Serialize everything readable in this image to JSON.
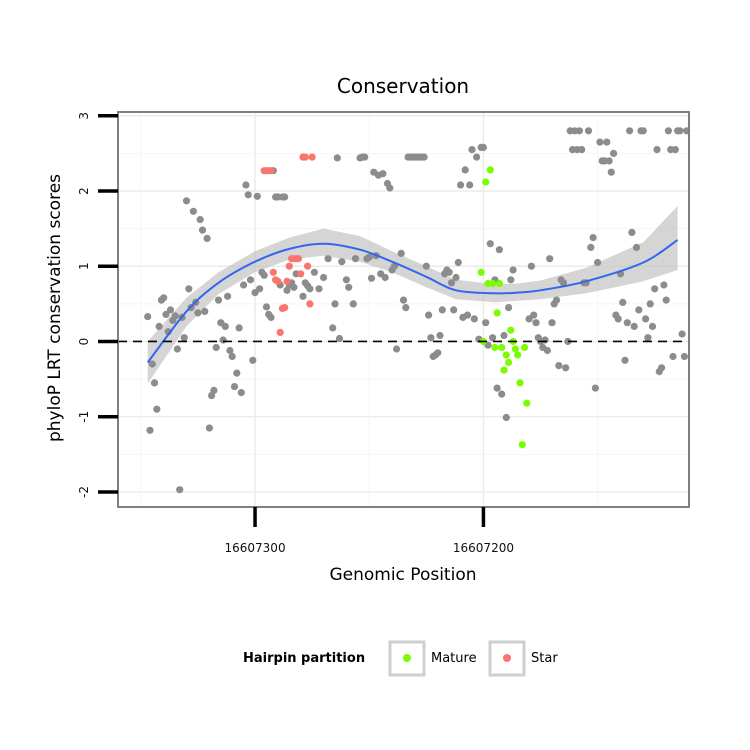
{
  "chart_data": {
    "type": "scatter",
    "title": "Conservation",
    "xlabel": "Genomic Position",
    "ylabel": "phyloP LRT conservation scores",
    "x_reversed": true,
    "xlim": [
      16607360,
      16607110
    ],
    "ylim": [
      -2.2,
      3.05
    ],
    "x_ticks": [
      16607300,
      16607200
    ],
    "x_tick_labels": [
      "16607300",
      "16607200"
    ],
    "y_ticks": [
      -2,
      -1,
      0,
      1,
      2,
      3
    ],
    "y_tick_labels": [
      "-2",
      "-1",
      "0",
      "1",
      "2",
      "3"
    ],
    "grid": true,
    "reference_line": {
      "y": 0,
      "style": "dashed"
    },
    "legend": {
      "title": "Hairpin partition",
      "placement": "bottom",
      "entries": [
        {
          "label": "Mature",
          "color": "#7cfc00"
        },
        {
          "label": "Star",
          "color": "#f8766d"
        }
      ]
    },
    "colors": {
      "other": "#8c8c8c",
      "mature": "#7cfc00",
      "star": "#f8766d",
      "smooth": "#3366ee",
      "band": "#bfbfbf"
    },
    "smooth": {
      "x": [
        16607347,
        16607330,
        16607316,
        16607300,
        16607285,
        16607270,
        16607254,
        16607240,
        16607225,
        16607212,
        16607195,
        16607185,
        16607175,
        16607155,
        16607130,
        16607115
      ],
      "y": [
        -0.28,
        0.4,
        0.78,
        1.06,
        1.23,
        1.3,
        1.22,
        1.06,
        0.86,
        0.68,
        0.64,
        0.65,
        0.68,
        0.8,
        1.05,
        1.35
      ],
      "band_upper": [
        0.0,
        0.58,
        0.92,
        1.2,
        1.38,
        1.5,
        1.4,
        1.2,
        1.0,
        0.82,
        0.76,
        0.77,
        0.81,
        0.98,
        1.32,
        1.8
      ],
      "band_lower": [
        -0.56,
        0.2,
        0.63,
        0.92,
        1.09,
        1.14,
        1.06,
        0.92,
        0.72,
        0.56,
        0.52,
        0.54,
        0.56,
        0.64,
        0.8,
        0.95
      ]
    },
    "series": [
      {
        "group": "Other",
        "points": [
          [
            16607347,
            0.33
          ],
          [
            16607346,
            -1.18
          ],
          [
            16607345,
            -0.3
          ],
          [
            16607344,
            -0.55
          ],
          [
            16607343,
            -0.9
          ],
          [
            16607342,
            0.2
          ],
          [
            16607341,
            0.55
          ],
          [
            16607340,
            0.58
          ],
          [
            16607339,
            0.36
          ],
          [
            16607338,
            0.13
          ],
          [
            16607337,
            0.42
          ],
          [
            16607336,
            0.28
          ],
          [
            16607335,
            0.34
          ],
          [
            16607334,
            -0.1
          ],
          [
            16607333,
            -1.97
          ],
          [
            16607332,
            0.32
          ],
          [
            16607331,
            0.05
          ],
          [
            16607330,
            1.87
          ],
          [
            16607329,
            0.7
          ],
          [
            16607328,
            0.45
          ],
          [
            16607327,
            1.73
          ],
          [
            16607326,
            0.52
          ],
          [
            16607325,
            0.38
          ],
          [
            16607324,
            1.62
          ],
          [
            16607323,
            1.48
          ],
          [
            16607322,
            0.4
          ],
          [
            16607321,
            1.37
          ],
          [
            16607320,
            -1.15
          ],
          [
            16607319,
            -0.72
          ],
          [
            16607318,
            -0.65
          ],
          [
            16607317,
            -0.08
          ],
          [
            16607316,
            0.55
          ],
          [
            16607315,
            0.25
          ],
          [
            16607314,
            0.02
          ],
          [
            16607313,
            0.2
          ],
          [
            16607312,
            0.6
          ],
          [
            16607311,
            -0.12
          ],
          [
            16607310,
            -0.2
          ],
          [
            16607309,
            -0.6
          ],
          [
            16607308,
            -0.42
          ],
          [
            16607307,
            0.18
          ],
          [
            16607306,
            -0.68
          ],
          [
            16607305,
            0.75
          ],
          [
            16607304,
            2.08
          ],
          [
            16607303,
            1.95
          ],
          [
            16607302,
            0.82
          ],
          [
            16607301,
            -0.25
          ],
          [
            16607300,
            0.65
          ],
          [
            16607299,
            1.93
          ],
          [
            16607298,
            0.7
          ],
          [
            16607297,
            0.92
          ],
          [
            16607296,
            0.88
          ],
          [
            16607295,
            0.46
          ],
          [
            16607294,
            0.36
          ],
          [
            16607293,
            0.32
          ],
          [
            16607292,
            2.27
          ],
          [
            16607291,
            1.92
          ],
          [
            16607290,
            1.92
          ],
          [
            16607289,
            0.75
          ],
          [
            16607288,
            1.92
          ],
          [
            16607287,
            1.92
          ],
          [
            16607286,
            0.68
          ],
          [
            16607285,
            0.75
          ],
          [
            16607284,
            0.78
          ],
          [
            16607283,
            0.72
          ],
          [
            16607282,
            0.9
          ],
          [
            16607279,
            0.6
          ],
          [
            16607278,
            0.78
          ],
          [
            16607277,
            0.74
          ],
          [
            16607276,
            0.7
          ],
          [
            16607274,
            0.92
          ],
          [
            16607272,
            0.7
          ],
          [
            16607270,
            0.85
          ],
          [
            16607268,
            1.1
          ],
          [
            16607266,
            0.18
          ],
          [
            16607265,
            0.5
          ],
          [
            16607264,
            2.44
          ],
          [
            16607263,
            0.04
          ],
          [
            16607262,
            1.06
          ],
          [
            16607260,
            0.82
          ],
          [
            16607259,
            0.72
          ],
          [
            16607257,
            0.5
          ],
          [
            16607256,
            1.1
          ],
          [
            16607254,
            2.44
          ],
          [
            16607253,
            2.45
          ],
          [
            16607252,
            2.45
          ],
          [
            16607251,
            1.1
          ],
          [
            16607250,
            1.12
          ],
          [
            16607249,
            0.84
          ],
          [
            16607248,
            2.25
          ],
          [
            16607247,
            1.14
          ],
          [
            16607246,
            2.21
          ],
          [
            16607245,
            0.9
          ],
          [
            16607244,
            2.23
          ],
          [
            16607243,
            0.85
          ],
          [
            16607242,
            2.1
          ],
          [
            16607241,
            2.04
          ],
          [
            16607240,
            0.95
          ],
          [
            16607239,
            1.0
          ],
          [
            16607238,
            -0.1
          ],
          [
            16607236,
            1.17
          ],
          [
            16607235,
            0.55
          ],
          [
            16607234,
            0.45
          ],
          [
            16607233,
            2.45
          ],
          [
            16607232,
            2.45
          ],
          [
            16607231,
            2.45
          ],
          [
            16607230,
            2.45
          ],
          [
            16607229,
            2.45
          ],
          [
            16607228,
            2.45
          ],
          [
            16607227,
            2.45
          ],
          [
            16607226,
            2.45
          ],
          [
            16607225,
            1.0
          ],
          [
            16607224,
            0.35
          ],
          [
            16607223,
            0.05
          ],
          [
            16607222,
            -0.2
          ],
          [
            16607221,
            -0.18
          ],
          [
            16607220,
            -0.15
          ],
          [
            16607219,
            0.08
          ],
          [
            16607218,
            0.42
          ],
          [
            16607217,
            0.9
          ],
          [
            16607216,
            0.95
          ],
          [
            16607215,
            0.92
          ],
          [
            16607214,
            0.78
          ],
          [
            16607213,
            0.42
          ],
          [
            16607212,
            0.85
          ],
          [
            16607211,
            1.05
          ],
          [
            16607210,
            2.08
          ],
          [
            16607209,
            0.32
          ],
          [
            16607208,
            2.28
          ],
          [
            16607207,
            0.35
          ],
          [
            16607206,
            2.08
          ],
          [
            16607205,
            2.55
          ],
          [
            16607204,
            0.3
          ],
          [
            16607203,
            2.45
          ],
          [
            16607202,
            0.03
          ],
          [
            16607201,
            2.58
          ],
          [
            16607200,
            2.58
          ],
          [
            16607199,
            0.25
          ],
          [
            16607198,
            -0.05
          ],
          [
            16607197,
            1.3
          ],
          [
            16607196,
            0.05
          ],
          [
            16607195,
            0.82
          ],
          [
            16607194,
            -0.62
          ],
          [
            16607193,
            1.22
          ],
          [
            16607192,
            -0.7
          ],
          [
            16607191,
            0.08
          ],
          [
            16607190,
            -1.01
          ],
          [
            16607189,
            0.45
          ],
          [
            16607188,
            0.82
          ],
          [
            16607187,
            0.95
          ],
          [
            16607180,
            0.3
          ],
          [
            16607179,
            1.0
          ],
          [
            16607178,
            0.35
          ],
          [
            16607177,
            0.25
          ],
          [
            16607176,
            0.05
          ],
          [
            16607175,
            0.0
          ],
          [
            16607174,
            -0.08
          ],
          [
            16607173,
            0.02
          ],
          [
            16607172,
            -0.12
          ],
          [
            16607171,
            1.1
          ],
          [
            16607170,
            0.25
          ],
          [
            16607169,
            0.5
          ],
          [
            16607168,
            0.55
          ],
          [
            16607167,
            -0.32
          ],
          [
            16607166,
            0.82
          ],
          [
            16607165,
            0.78
          ],
          [
            16607164,
            -0.35
          ],
          [
            16607163,
            0.0
          ],
          [
            16607162,
            2.8
          ],
          [
            16607161,
            2.55
          ],
          [
            16607160,
            2.8
          ],
          [
            16607159,
            2.55
          ],
          [
            16607158,
            2.8
          ],
          [
            16607157,
            2.55
          ],
          [
            16607156,
            0.78
          ],
          [
            16607155,
            0.78
          ],
          [
            16607154,
            2.8
          ],
          [
            16607153,
            1.25
          ],
          [
            16607152,
            1.38
          ],
          [
            16607151,
            -0.62
          ],
          [
            16607150,
            1.05
          ],
          [
            16607149,
            2.65
          ],
          [
            16607148,
            2.4
          ],
          [
            16607147,
            2.4
          ],
          [
            16607146,
            2.65
          ],
          [
            16607145,
            2.4
          ],
          [
            16607144,
            2.25
          ],
          [
            16607143,
            2.5
          ],
          [
            16607142,
            0.35
          ],
          [
            16607141,
            0.3
          ],
          [
            16607140,
            0.9
          ],
          [
            16607139,
            0.52
          ],
          [
            16607138,
            -0.25
          ],
          [
            16607137,
            0.25
          ],
          [
            16607136,
            2.8
          ],
          [
            16607135,
            1.45
          ],
          [
            16607134,
            0.2
          ],
          [
            16607133,
            1.25
          ],
          [
            16607132,
            0.42
          ],
          [
            16607131,
            2.8
          ],
          [
            16607130,
            2.8
          ],
          [
            16607129,
            0.3
          ],
          [
            16607128,
            0.05
          ],
          [
            16607127,
            0.5
          ],
          [
            16607126,
            0.2
          ],
          [
            16607125,
            0.7
          ],
          [
            16607124,
            2.55
          ],
          [
            16607123,
            -0.4
          ],
          [
            16607122,
            -0.35
          ],
          [
            16607121,
            0.75
          ],
          [
            16607120,
            0.55
          ],
          [
            16607119,
            2.8
          ],
          [
            16607118,
            2.55
          ],
          [
            16607117,
            -0.2
          ],
          [
            16607116,
            2.55
          ],
          [
            16607115,
            2.8
          ],
          [
            16607114,
            2.8
          ],
          [
            16607113,
            0.1
          ],
          [
            16607112,
            -0.2
          ],
          [
            16607111,
            2.8
          ]
        ]
      },
      {
        "group": "Star",
        "points": [
          [
            16607296,
            2.27
          ],
          [
            16607295,
            2.27
          ],
          [
            16607294,
            2.27
          ],
          [
            16607293,
            2.27
          ],
          [
            16607292,
            0.92
          ],
          [
            16607291,
            0.82
          ],
          [
            16607290,
            0.8
          ],
          [
            16607289,
            0.12
          ],
          [
            16607288,
            0.44
          ],
          [
            16607287,
            0.45
          ],
          [
            16607286,
            0.8
          ],
          [
            16607285,
            1.0
          ],
          [
            16607284,
            1.1
          ],
          [
            16607283,
            1.1
          ],
          [
            16607282,
            1.1
          ],
          [
            16607281,
            1.1
          ],
          [
            16607280,
            0.9
          ],
          [
            16607279,
            2.45
          ],
          [
            16607278,
            2.45
          ],
          [
            16607277,
            1.0
          ],
          [
            16607276,
            0.5
          ],
          [
            16607275,
            2.45
          ]
        ]
      },
      {
        "group": "Mature",
        "points": [
          [
            16607201,
            0.92
          ],
          [
            16607200,
            0.0
          ],
          [
            16607199,
            2.12
          ],
          [
            16607198,
            0.77
          ],
          [
            16607197,
            2.28
          ],
          [
            16607196,
            0.77
          ],
          [
            16607195,
            -0.08
          ],
          [
            16607194,
            0.38
          ],
          [
            16607193,
            0.77
          ],
          [
            16607192,
            -0.08
          ],
          [
            16607191,
            -0.38
          ],
          [
            16607190,
            -0.18
          ],
          [
            16607189,
            -0.28
          ],
          [
            16607188,
            0.15
          ],
          [
            16607187,
            0.0
          ],
          [
            16607186,
            -0.1
          ],
          [
            16607185,
            -0.18
          ],
          [
            16607184,
            -0.55
          ],
          [
            16607183,
            -1.37
          ],
          [
            16607182,
            -0.08
          ],
          [
            16607181,
            -0.82
          ]
        ]
      }
    ]
  }
}
